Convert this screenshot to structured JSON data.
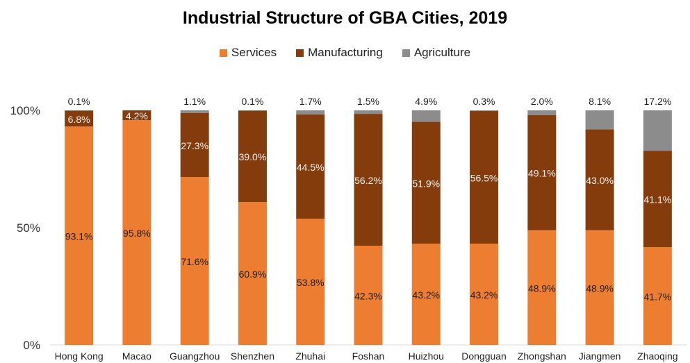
{
  "chart_data": {
    "type": "bar",
    "stacked": true,
    "title": "Industrial Structure of GBA Cities, 2019",
    "xlabel": "",
    "ylabel": "",
    "ylim": [
      0,
      100
    ],
    "y_ticks": [
      "0%",
      "50%",
      "100%"
    ],
    "categories": [
      "Hong Kong",
      "Macao",
      "Guangzhou",
      "Shenzhen",
      "Zhuhai",
      "Foshan",
      "Huizhou",
      "Dongguan",
      "Zhongshan",
      "Jiangmen",
      "Zhaoqing"
    ],
    "legend_position": "top",
    "grid": false,
    "series": [
      {
        "name": "Services",
        "color": "#ED7D31",
        "values": [
          93.1,
          95.8,
          71.6,
          60.9,
          53.8,
          42.3,
          43.2,
          43.2,
          48.9,
          48.9,
          41.7
        ],
        "labels": [
          "93.1%",
          "95.8%",
          "71.6%",
          "60.9%",
          "53.8%",
          "42.3%",
          "43.2%",
          "43.2%",
          "48.9%",
          "48.9%",
          "41.7%"
        ]
      },
      {
        "name": "Manufacturing",
        "color": "#843C0C",
        "values": [
          6.8,
          4.2,
          27.3,
          39.0,
          44.5,
          56.2,
          51.9,
          56.5,
          49.1,
          43.0,
          41.1
        ],
        "labels": [
          "6.8%",
          "4.2%",
          "27.3%",
          "39.0%",
          "44.5%",
          "56.2%",
          "51.9%",
          "56.5%",
          "49.1%",
          "43.0%",
          "41.1%"
        ]
      },
      {
        "name": "Agriculture",
        "color": "#8C8C8C",
        "values": [
          0.1,
          0,
          1.1,
          0.1,
          1.7,
          1.5,
          4.9,
          0.3,
          2.0,
          8.1,
          17.2
        ],
        "labels": [
          "0.1%",
          "",
          "1.1%",
          "0.1%",
          "1.7%",
          "1.5%",
          "4.9%",
          "0.3%",
          "2.0%",
          "8.1%",
          "17.2%"
        ]
      }
    ]
  }
}
